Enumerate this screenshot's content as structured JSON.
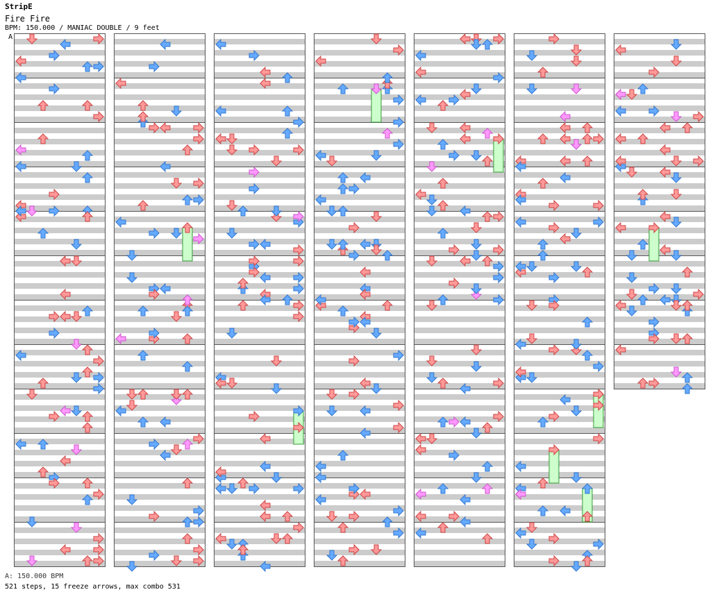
{
  "artist": "StripE",
  "song_title": "Fire Fire",
  "chart_info": "BPM: 150.000 / MANIAC DOUBLE / 9 feet",
  "section_marker": "A",
  "footer_bpm": "A: 150.000 BPM",
  "footer_stats": "521 steps, 15 freeze arrows, max combo 531",
  "colors": {
    "stripe_gray": "#cccccc",
    "quarter_red": "#ff9999",
    "eighth_blue": "#66aaff",
    "sixteenth_pink": "#ff99ff",
    "freeze_green": "#ccffcc"
  },
  "chart_data": {
    "type": "table",
    "columns": 7,
    "measures_per_column": 12,
    "lanes": 8,
    "measures": 80,
    "steps": 521,
    "freeze_arrows": 15,
    "max_combo": 531,
    "bpm": 150
  }
}
